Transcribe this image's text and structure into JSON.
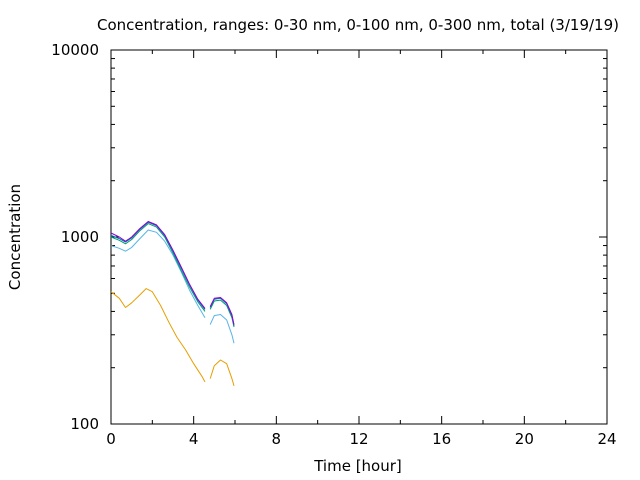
{
  "chart_data": {
    "type": "line",
    "title": "Concentration, ranges: 0-30 nm, 0-100 nm, 0-300 nm, total (3/19/19)",
    "xlabel": "Time [hour]",
    "ylabel": "Concentration",
    "xlim": [
      0,
      24
    ],
    "ylim": [
      100,
      10000
    ],
    "yscale": "log",
    "grid": false,
    "x_ticks": [
      0,
      4,
      8,
      12,
      16,
      20,
      24
    ],
    "y_ticks": [
      100,
      1000,
      10000
    ],
    "x_tick_labels": [
      "0",
      "4",
      "8",
      "12",
      "16",
      "20",
      "24"
    ],
    "y_tick_labels": [
      "100",
      "1000",
      "10000"
    ],
    "series": [
      {
        "color": "#e69f00",
        "segments": [
          [
            [
              0,
              510
            ],
            [
              0.4,
              470
            ],
            [
              0.7,
              420
            ],
            [
              1.0,
              445
            ],
            [
              1.4,
              490
            ],
            [
              1.7,
              530
            ],
            [
              2.0,
              510
            ],
            [
              2.4,
              430
            ],
            [
              2.8,
              350
            ],
            [
              3.2,
              290
            ],
            [
              3.6,
              250
            ],
            [
              4.0,
              210
            ],
            [
              4.4,
              180
            ],
            [
              4.55,
              168
            ]
          ],
          [
            [
              4.8,
              175
            ],
            [
              5.0,
              205
            ],
            [
              5.3,
              220
            ],
            [
              5.6,
              210
            ],
            [
              5.85,
              175
            ],
            [
              5.95,
              160
            ]
          ]
        ]
      },
      {
        "color": "#56b4e9",
        "segments": [
          [
            [
              0,
              900
            ],
            [
              0.4,
              870
            ],
            [
              0.7,
              840
            ],
            [
              1.0,
              880
            ],
            [
              1.4,
              980
            ],
            [
              1.8,
              1090
            ],
            [
              2.2,
              1060
            ],
            [
              2.6,
              950
            ],
            [
              3.0,
              800
            ],
            [
              3.4,
              650
            ],
            [
              3.8,
              520
            ],
            [
              4.2,
              430
            ],
            [
              4.55,
              370
            ]
          ],
          [
            [
              4.8,
              340
            ],
            [
              5.0,
              380
            ],
            [
              5.3,
              385
            ],
            [
              5.6,
              360
            ],
            [
              5.85,
              300
            ],
            [
              5.95,
              270
            ]
          ]
        ]
      },
      {
        "color": "#009e73",
        "segments": [
          [
            [
              0,
              1000
            ],
            [
              0.4,
              960
            ],
            [
              0.7,
              920
            ],
            [
              1.0,
              970
            ],
            [
              1.4,
              1080
            ],
            [
              1.8,
              1180
            ],
            [
              2.2,
              1130
            ],
            [
              2.6,
              1000
            ],
            [
              3.0,
              820
            ],
            [
              3.4,
              660
            ],
            [
              3.8,
              540
            ],
            [
              4.2,
              450
            ],
            [
              4.55,
              400
            ]
          ],
          [
            [
              4.8,
              410
            ],
            [
              5.0,
              455
            ],
            [
              5.3,
              460
            ],
            [
              5.6,
              430
            ],
            [
              5.85,
              370
            ],
            [
              5.95,
              330
            ]
          ]
        ]
      },
      {
        "color": "#0072b2",
        "segments": [
          [
            [
              0,
              1020
            ],
            [
              0.4,
              980
            ],
            [
              0.7,
              940
            ],
            [
              1.0,
              990
            ],
            [
              1.4,
              1100
            ],
            [
              1.8,
              1200
            ],
            [
              2.2,
              1150
            ],
            [
              2.6,
              1020
            ],
            [
              3.0,
              840
            ],
            [
              3.4,
              680
            ],
            [
              3.8,
              555
            ],
            [
              4.2,
              460
            ],
            [
              4.55,
              410
            ]
          ],
          [
            [
              4.8,
              420
            ],
            [
              5.0,
              465
            ],
            [
              5.3,
              470
            ],
            [
              5.6,
              440
            ],
            [
              5.85,
              380
            ],
            [
              5.95,
              335
            ]
          ]
        ]
      },
      {
        "color": "#9400d3",
        "segments": [
          [
            [
              0,
              1050
            ],
            [
              0.4,
              1000
            ],
            [
              0.7,
              950
            ],
            [
              1.0,
              1000
            ],
            [
              1.4,
              1110
            ],
            [
              1.8,
              1210
            ],
            [
              2.2,
              1160
            ],
            [
              2.6,
              1030
            ],
            [
              3.0,
              850
            ],
            [
              3.4,
              690
            ],
            [
              3.8,
              560
            ],
            [
              4.2,
              465
            ],
            [
              4.55,
              415
            ]
          ],
          [
            [
              4.8,
              425
            ],
            [
              5.0,
              470
            ],
            [
              5.3,
              475
            ],
            [
              5.6,
              445
            ],
            [
              5.85,
              385
            ],
            [
              5.95,
              340
            ]
          ]
        ]
      }
    ]
  }
}
